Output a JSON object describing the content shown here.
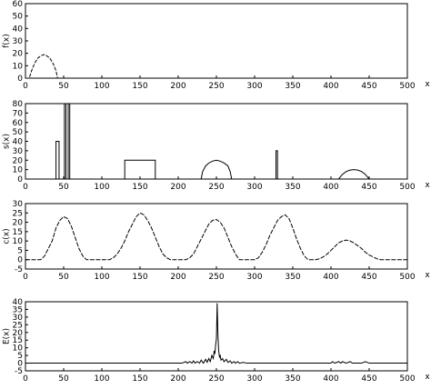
{
  "chart_data": [
    {
      "type": "line",
      "ylabel": "f(x)",
      "xlabel": "x",
      "xlim": [
        0,
        500
      ],
      "ylim": [
        0,
        60
      ],
      "xticks": [
        0,
        50,
        100,
        150,
        200,
        250,
        300,
        350,
        400,
        450,
        500
      ],
      "yticks": [
        0,
        10,
        20,
        30,
        40,
        50,
        60
      ],
      "series": [
        {
          "x": [
            0,
            5,
            8,
            12,
            16,
            20,
            24,
            28,
            32,
            36,
            40,
            42,
            45,
            50,
            500
          ],
          "y": [
            0,
            0,
            6,
            12,
            16,
            18,
            19,
            18,
            16,
            12,
            6,
            0,
            0,
            0,
            0
          ]
        }
      ]
    },
    {
      "type": "line",
      "ylabel": "s(x)",
      "xlabel": "x",
      "xlim": [
        0,
        500
      ],
      "ylim": [
        0,
        80
      ],
      "xticks": [
        0,
        50,
        100,
        150,
        200,
        250,
        300,
        350,
        400,
        450,
        500
      ],
      "yticks": [
        0,
        10,
        20,
        30,
        40,
        50,
        60,
        70,
        80
      ],
      "series": [
        {
          "x": [
            0,
            40,
            40,
            44,
            44,
            51,
            51,
            53,
            53,
            56,
            56,
            58,
            58,
            130,
            130,
            170,
            170,
            230,
            232,
            236,
            240,
            245,
            250,
            255,
            260,
            265,
            268,
            270,
            328,
            328,
            330,
            330,
            400,
            410,
            415,
            420,
            425,
            430,
            435,
            440,
            445,
            450,
            460,
            500
          ],
          "y": [
            0,
            0,
            40,
            40,
            0,
            0,
            80,
            80,
            0,
            0,
            80,
            80,
            0,
            0,
            20,
            20,
            0,
            0,
            8,
            14,
            17,
            19,
            20,
            19,
            17,
            14,
            8,
            0,
            0,
            30,
            30,
            0,
            0,
            0,
            5,
            8,
            9.5,
            10,
            9.5,
            8,
            5,
            0,
            0,
            0
          ]
        }
      ]
    },
    {
      "type": "line",
      "ylabel": "c(x)",
      "xlabel": "x",
      "xlim": [
        0,
        500
      ],
      "ylim": [
        -5,
        30
      ],
      "xticks": [
        0,
        50,
        100,
        150,
        200,
        250,
        300,
        350,
        400,
        450,
        500
      ],
      "yticks": [
        -5,
        0,
        5,
        10,
        15,
        20,
        25,
        30
      ],
      "series": [
        {
          "x": [
            0,
            20,
            25,
            30,
            35,
            40,
            45,
            50,
            55,
            60,
            65,
            70,
            75,
            80,
            110,
            115,
            120,
            125,
            130,
            135,
            140,
            145,
            150,
            155,
            160,
            165,
            170,
            175,
            180,
            185,
            190,
            210,
            215,
            220,
            225,
            230,
            235,
            240,
            245,
            250,
            255,
            260,
            265,
            270,
            275,
            280,
            300,
            305,
            310,
            315,
            320,
            325,
            330,
            335,
            340,
            345,
            350,
            355,
            360,
            365,
            370,
            380,
            385,
            390,
            395,
            400,
            405,
            410,
            415,
            420,
            425,
            430,
            435,
            440,
            445,
            450,
            455,
            460,
            465,
            470,
            500
          ],
          "y": [
            0,
            0,
            2,
            6,
            10,
            17,
            21,
            23,
            22,
            18,
            12,
            6,
            2,
            0,
            0,
            1,
            3,
            6,
            10,
            15,
            19,
            23,
            25,
            24,
            21,
            17,
            12,
            7,
            3,
            1,
            0,
            0,
            1,
            3,
            7,
            11,
            15,
            19,
            21,
            21.5,
            20,
            17,
            12,
            7,
            3,
            0,
            0,
            1,
            4,
            8,
            13,
            17,
            21,
            23,
            24,
            22,
            17,
            11,
            6,
            2,
            0,
            0,
            0.5,
            1.5,
            3,
            5,
            7,
            9,
            10,
            10.5,
            10,
            9,
            7.5,
            6,
            4,
            2.5,
            1.5,
            0.5,
            0,
            0,
            0
          ]
        }
      ]
    },
    {
      "type": "line",
      "ylabel": "E(x)",
      "xlabel": "x",
      "xlim": [
        0,
        500
      ],
      "ylim": [
        -5,
        40
      ],
      "xticks": [
        0,
        50,
        100,
        150,
        200,
        250,
        300,
        350,
        400,
        450,
        500
      ],
      "yticks": [
        -5,
        0,
        5,
        10,
        15,
        20,
        25,
        30,
        35,
        40
      ],
      "series": [
        {
          "x": [
            0,
            130,
            170,
            205,
            210,
            212,
            215,
            218,
            220,
            222,
            225,
            228,
            230,
            233,
            236,
            238,
            240,
            242,
            244,
            246,
            247,
            248,
            249,
            250,
            251,
            252,
            253,
            254,
            255,
            256,
            258,
            260,
            263,
            265,
            268,
            270,
            273,
            275,
            278,
            280,
            285,
            290,
            300,
            400,
            402,
            405,
            410,
            413,
            415,
            420,
            425,
            428,
            430,
            440,
            445,
            450,
            500
          ],
          "y": [
            0,
            0,
            0,
            0,
            1,
            0,
            1,
            0,
            1.5,
            0,
            1,
            0,
            2,
            0,
            2.5,
            0.5,
            3,
            1,
            5,
            3,
            8,
            6,
            12,
            16,
            39,
            18,
            8,
            4,
            5,
            2,
            3,
            1,
            2.5,
            0.5,
            1.5,
            0,
            1,
            0,
            1,
            0,
            0.5,
            0,
            0,
            0,
            1,
            0,
            1,
            0,
            1,
            0,
            1,
            0,
            0,
            0,
            1,
            0,
            0
          ]
        }
      ]
    }
  ]
}
